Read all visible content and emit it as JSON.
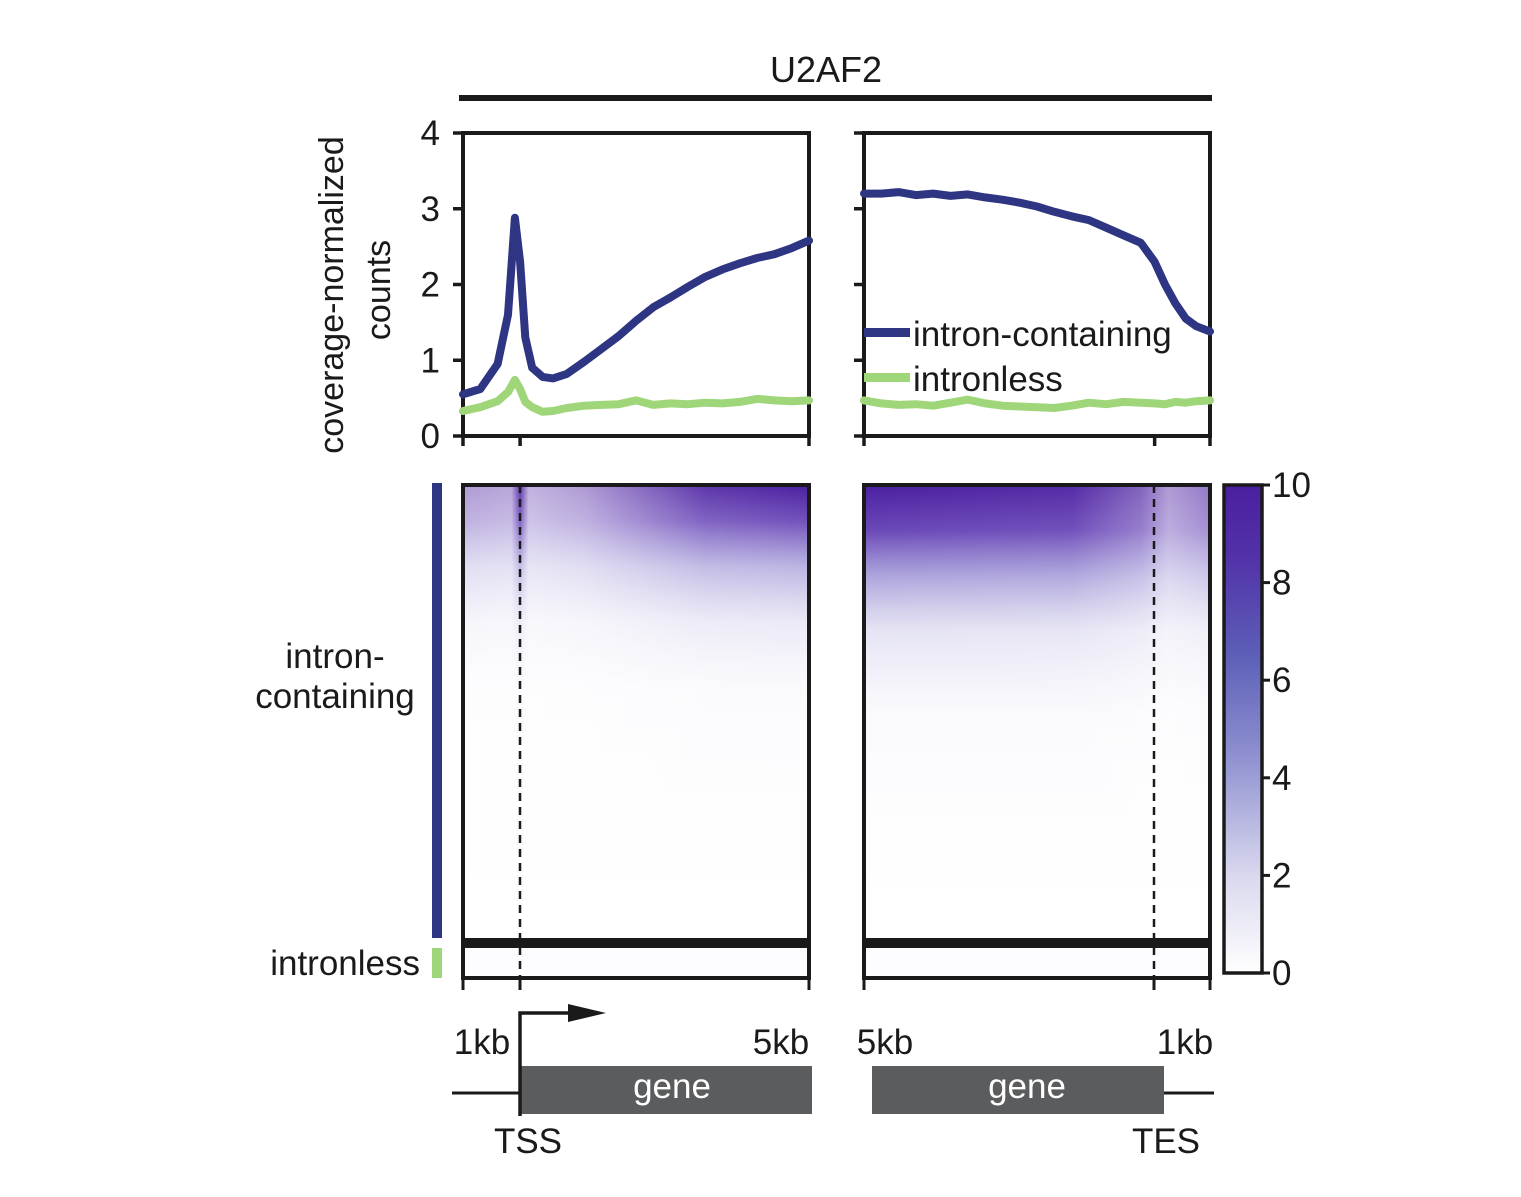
{
  "title": "U2AF2",
  "colors": {
    "title": "#6a3d9a",
    "intron_containing": "#2e3582",
    "intronless": "#9fd67a",
    "heatmap_max": "#4b1fa0",
    "gene_box": "#5a5c5e",
    "axis": "#1a1a1a"
  },
  "chart_data": [
    {
      "type": "line",
      "panel": "TSS-aligned profile",
      "ylabel_line1": "coverage-normalized",
      "ylabel_line2": "counts",
      "ylim": [
        0,
        4
      ],
      "yticks": [
        "0",
        "1",
        "2",
        "3",
        "4"
      ],
      "x": [
        0,
        0.05,
        0.1,
        0.13,
        0.15,
        0.165,
        0.18,
        0.2,
        0.23,
        0.26,
        0.3,
        0.35,
        0.4,
        0.45,
        0.5,
        0.55,
        0.6,
        0.65,
        0.7,
        0.75,
        0.8,
        0.85,
        0.9,
        0.95,
        1.0
      ],
      "series": [
        {
          "name": "intron-containing",
          "values": [
            0.55,
            0.62,
            0.95,
            1.6,
            2.88,
            2.3,
            1.3,
            0.9,
            0.78,
            0.76,
            0.82,
            0.98,
            1.15,
            1.32,
            1.52,
            1.7,
            1.83,
            1.97,
            2.1,
            2.2,
            2.28,
            2.35,
            2.4,
            2.48,
            2.58
          ]
        },
        {
          "name": "intronless",
          "values": [
            0.33,
            0.38,
            0.46,
            0.58,
            0.74,
            0.62,
            0.45,
            0.38,
            0.32,
            0.33,
            0.37,
            0.4,
            0.41,
            0.42,
            0.47,
            0.41,
            0.43,
            0.42,
            0.44,
            0.43,
            0.45,
            0.49,
            0.47,
            0.46,
            0.47
          ]
        }
      ]
    },
    {
      "type": "line",
      "panel": "TES-aligned profile",
      "ylim": [
        0,
        4
      ],
      "x": [
        0,
        0.05,
        0.1,
        0.15,
        0.2,
        0.25,
        0.3,
        0.35,
        0.4,
        0.45,
        0.5,
        0.55,
        0.6,
        0.65,
        0.7,
        0.75,
        0.8,
        0.84,
        0.87,
        0.9,
        0.93,
        0.96,
        1.0
      ],
      "series": [
        {
          "name": "intron-containing",
          "values": [
            3.2,
            3.2,
            3.22,
            3.18,
            3.2,
            3.17,
            3.19,
            3.15,
            3.12,
            3.08,
            3.03,
            2.96,
            2.9,
            2.85,
            2.75,
            2.65,
            2.55,
            2.3,
            2.0,
            1.75,
            1.55,
            1.45,
            1.38
          ]
        },
        {
          "name": "intronless",
          "values": [
            0.47,
            0.43,
            0.41,
            0.42,
            0.4,
            0.44,
            0.48,
            0.43,
            0.4,
            0.39,
            0.38,
            0.37,
            0.4,
            0.44,
            0.42,
            0.45,
            0.44,
            0.43,
            0.42,
            0.45,
            0.44,
            0.46,
            0.47
          ]
        }
      ]
    },
    {
      "type": "heatmap",
      "panels": [
        "TSS-aligned",
        "TES-aligned"
      ],
      "row_groups": [
        "intron-containing",
        "intronless"
      ],
      "colorbar": {
        "min": 0,
        "max": 10,
        "ticks": [
          "0",
          "2",
          "4",
          "6",
          "8",
          "10"
        ]
      }
    }
  ],
  "legend": {
    "items": [
      "intron-containing",
      "intronless"
    ]
  },
  "row_labels": {
    "intron_line1": "intron-",
    "intron_line2": "containing",
    "intronless": "intronless"
  },
  "schematic": {
    "left": {
      "left_label": "1kb",
      "right_label": "5kb",
      "gene": "gene",
      "site": "TSS"
    },
    "right": {
      "left_label": "5kb",
      "right_label": "1kb",
      "gene": "gene",
      "site": "TES"
    }
  }
}
